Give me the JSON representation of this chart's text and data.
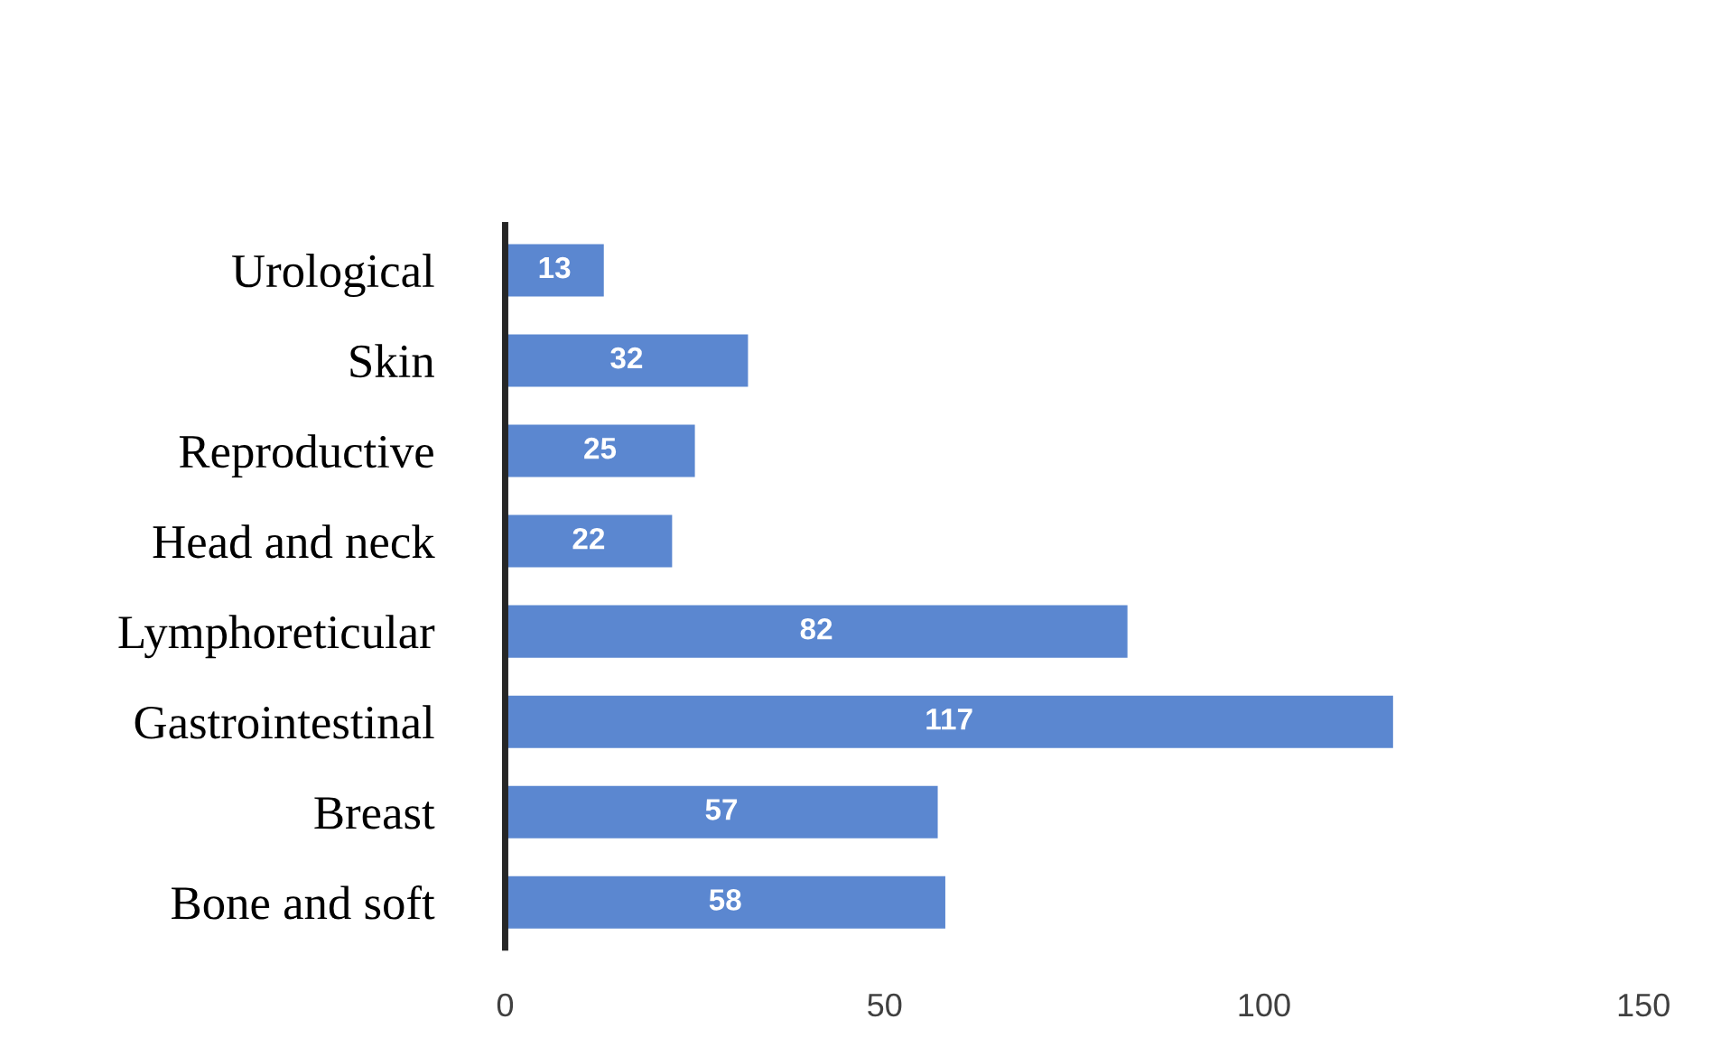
{
  "chart_data": {
    "type": "bar",
    "orientation": "horizontal",
    "categories": [
      "Urological",
      "Skin",
      "Reproductive",
      "Head and neck",
      "Lymphoreticular",
      "Gastrointestinal",
      "Breast",
      "Bone and soft"
    ],
    "values": [
      13,
      32,
      25,
      22,
      82,
      117,
      57,
      58
    ],
    "color": "#5b87d0",
    "xlim": [
      0,
      150
    ],
    "xticks": [
      0,
      50,
      100,
      150
    ],
    "data_labels": true,
    "grid": false
  }
}
